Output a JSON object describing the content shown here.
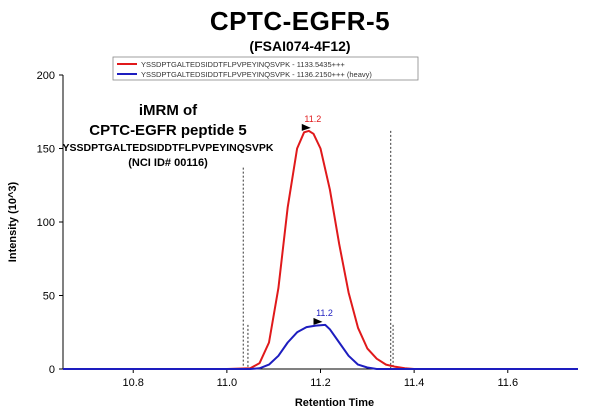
{
  "chart_data": {
    "type": "line",
    "title": "CPTC-EGFR-5",
    "subtitle": "(FSAI074-4F12)",
    "xlabel": "Retention Time",
    "ylabel": "Intensity (10^3)",
    "xlim": [
      10.65,
      11.75
    ],
    "ylim": [
      0,
      200
    ],
    "x_ticks": [
      10.8,
      11.0,
      11.2,
      11.4,
      11.6
    ],
    "x_tick_labels": [
      "10.8",
      "11.0",
      "11.2",
      "11.4",
      "11.6"
    ],
    "y_ticks": [
      0,
      50,
      100,
      150,
      200
    ],
    "y_tick_labels": [
      "0",
      "50",
      "100",
      "150",
      "200"
    ],
    "legend_position": "top-center",
    "annotation": {
      "line1": "iMRM of",
      "line2": "CPTC-EGFR peptide 5",
      "line3": "YSSDPTGALTEDSIDDTFLPVPEYINQSVPK",
      "line4": "(NCI ID# 00116)"
    },
    "boundaries": [
      11.035,
      11.35
    ],
    "inner_markers": [
      11.045,
      11.355
    ],
    "series": [
      {
        "name": "YSSDPTGALTEDSIDDTFLPVPEYINQSVPK - 1133.5435+++",
        "color": "#e0191b",
        "peak_label": "11.2",
        "peak_x": 11.175,
        "peak_y": 162,
        "x": [
          10.65,
          11.0,
          11.05,
          11.07,
          11.09,
          11.11,
          11.13,
          11.15,
          11.165,
          11.175,
          11.185,
          11.2,
          11.22,
          11.24,
          11.26,
          11.28,
          11.3,
          11.32,
          11.34,
          11.36,
          11.38,
          11.4,
          11.75
        ],
        "y": [
          0,
          0,
          0.5,
          4,
          18,
          55,
          110,
          150,
          161,
          162,
          160,
          150,
          122,
          85,
          52,
          28,
          14,
          7,
          3,
          1.5,
          0.5,
          0,
          0
        ]
      },
      {
        "name": "YSSDPTGALTEDSIDDTFLPVPEYINQSVPK - 1136.2150+++ (heavy)",
        "color": "#1d1dbf",
        "peak_label": "11.2",
        "peak_x": 11.2,
        "peak_y": 30,
        "x": [
          10.65,
          11.05,
          11.07,
          11.09,
          11.11,
          11.13,
          11.15,
          11.17,
          11.19,
          11.21,
          11.22,
          11.24,
          11.26,
          11.28,
          11.3,
          11.32,
          11.75
        ],
        "y": [
          0,
          0,
          0.5,
          3,
          9,
          18,
          25,
          28.5,
          29.5,
          30,
          27,
          18,
          9,
          3,
          1,
          0,
          0
        ]
      }
    ]
  }
}
